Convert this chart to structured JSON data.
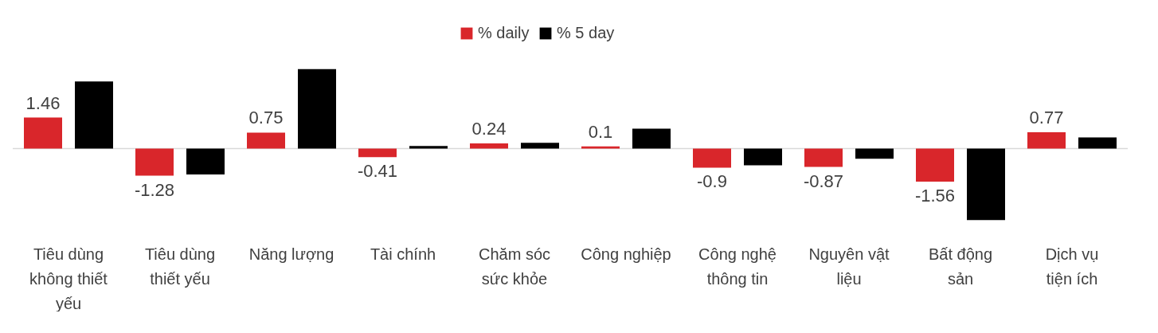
{
  "chart_data": {
    "type": "bar",
    "legend": "top",
    "categories": [
      "Tiêu dùng không thiết yếu",
      "Tiêu dùng thiết yếu",
      "Năng lượng",
      "Tài chính",
      "Chăm sóc sức khỏe",
      "Công nghiệp",
      "Công nghệ thông tin",
      "Nguyên vật liệu",
      "Bất động sản",
      "Dịch vụ tiện ích"
    ],
    "series": [
      {
        "name": "% daily",
        "color": "#d9262b",
        "values": [
          1.46,
          -1.28,
          0.75,
          -0.41,
          0.24,
          0.1,
          -0.9,
          -0.87,
          -1.56,
          0.77
        ],
        "value_labels": [
          "1.46",
          "-1.28",
          "0.75",
          "-0.41",
          "0.24",
          "0.1",
          "-0.9",
          "-0.87",
          "-1.56",
          "0.77"
        ]
      },
      {
        "name": "% 5 day",
        "color": "#000000",
        "values": [
          3.16,
          -1.22,
          3.74,
          0.12,
          0.27,
          0.94,
          -0.79,
          -0.48,
          -3.37,
          0.52
        ]
      }
    ]
  }
}
